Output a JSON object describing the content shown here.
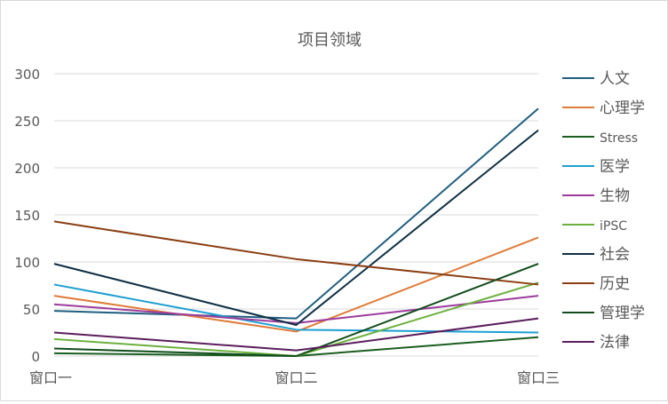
{
  "chart_data": {
    "type": "line",
    "title": "项目领域",
    "categories": [
      "窗口一",
      "窗口二",
      "窗口三"
    ],
    "ylim": [
      0,
      300
    ],
    "yticks": [
      0,
      50,
      100,
      150,
      200,
      250,
      300
    ],
    "grid": "horizontal",
    "legend_position": "right",
    "series": [
      {
        "name": "人文",
        "color": "#1f5f7f",
        "values": [
          48,
          40,
          263
        ]
      },
      {
        "name": "心理学",
        "color": "#e07b39",
        "values": [
          64,
          26,
          126
        ]
      },
      {
        "name": "Stress",
        "color": "#1a5e20",
        "values": [
          3,
          0,
          20
        ]
      },
      {
        "name": "医学",
        "color": "#1c9fd2",
        "values": [
          76,
          28,
          25
        ]
      },
      {
        "name": "生物",
        "color": "#9c3b9c",
        "values": [
          55,
          35,
          64
        ]
      },
      {
        "name": "iPSC",
        "color": "#6bb13d",
        "values": [
          18,
          0,
          78
        ]
      },
      {
        "name": "社会",
        "color": "#0e2f44",
        "values": [
          98,
          33,
          240
        ]
      },
      {
        "name": "历史",
        "color": "#8a3e12",
        "values": [
          143,
          103,
          76
        ]
      },
      {
        "name": "管理学",
        "color": "#114d1c",
        "values": [
          8,
          0,
          98
        ]
      },
      {
        "name": "法律",
        "color": "#5a1e5c",
        "values": [
          25,
          6,
          40
        ]
      }
    ]
  }
}
